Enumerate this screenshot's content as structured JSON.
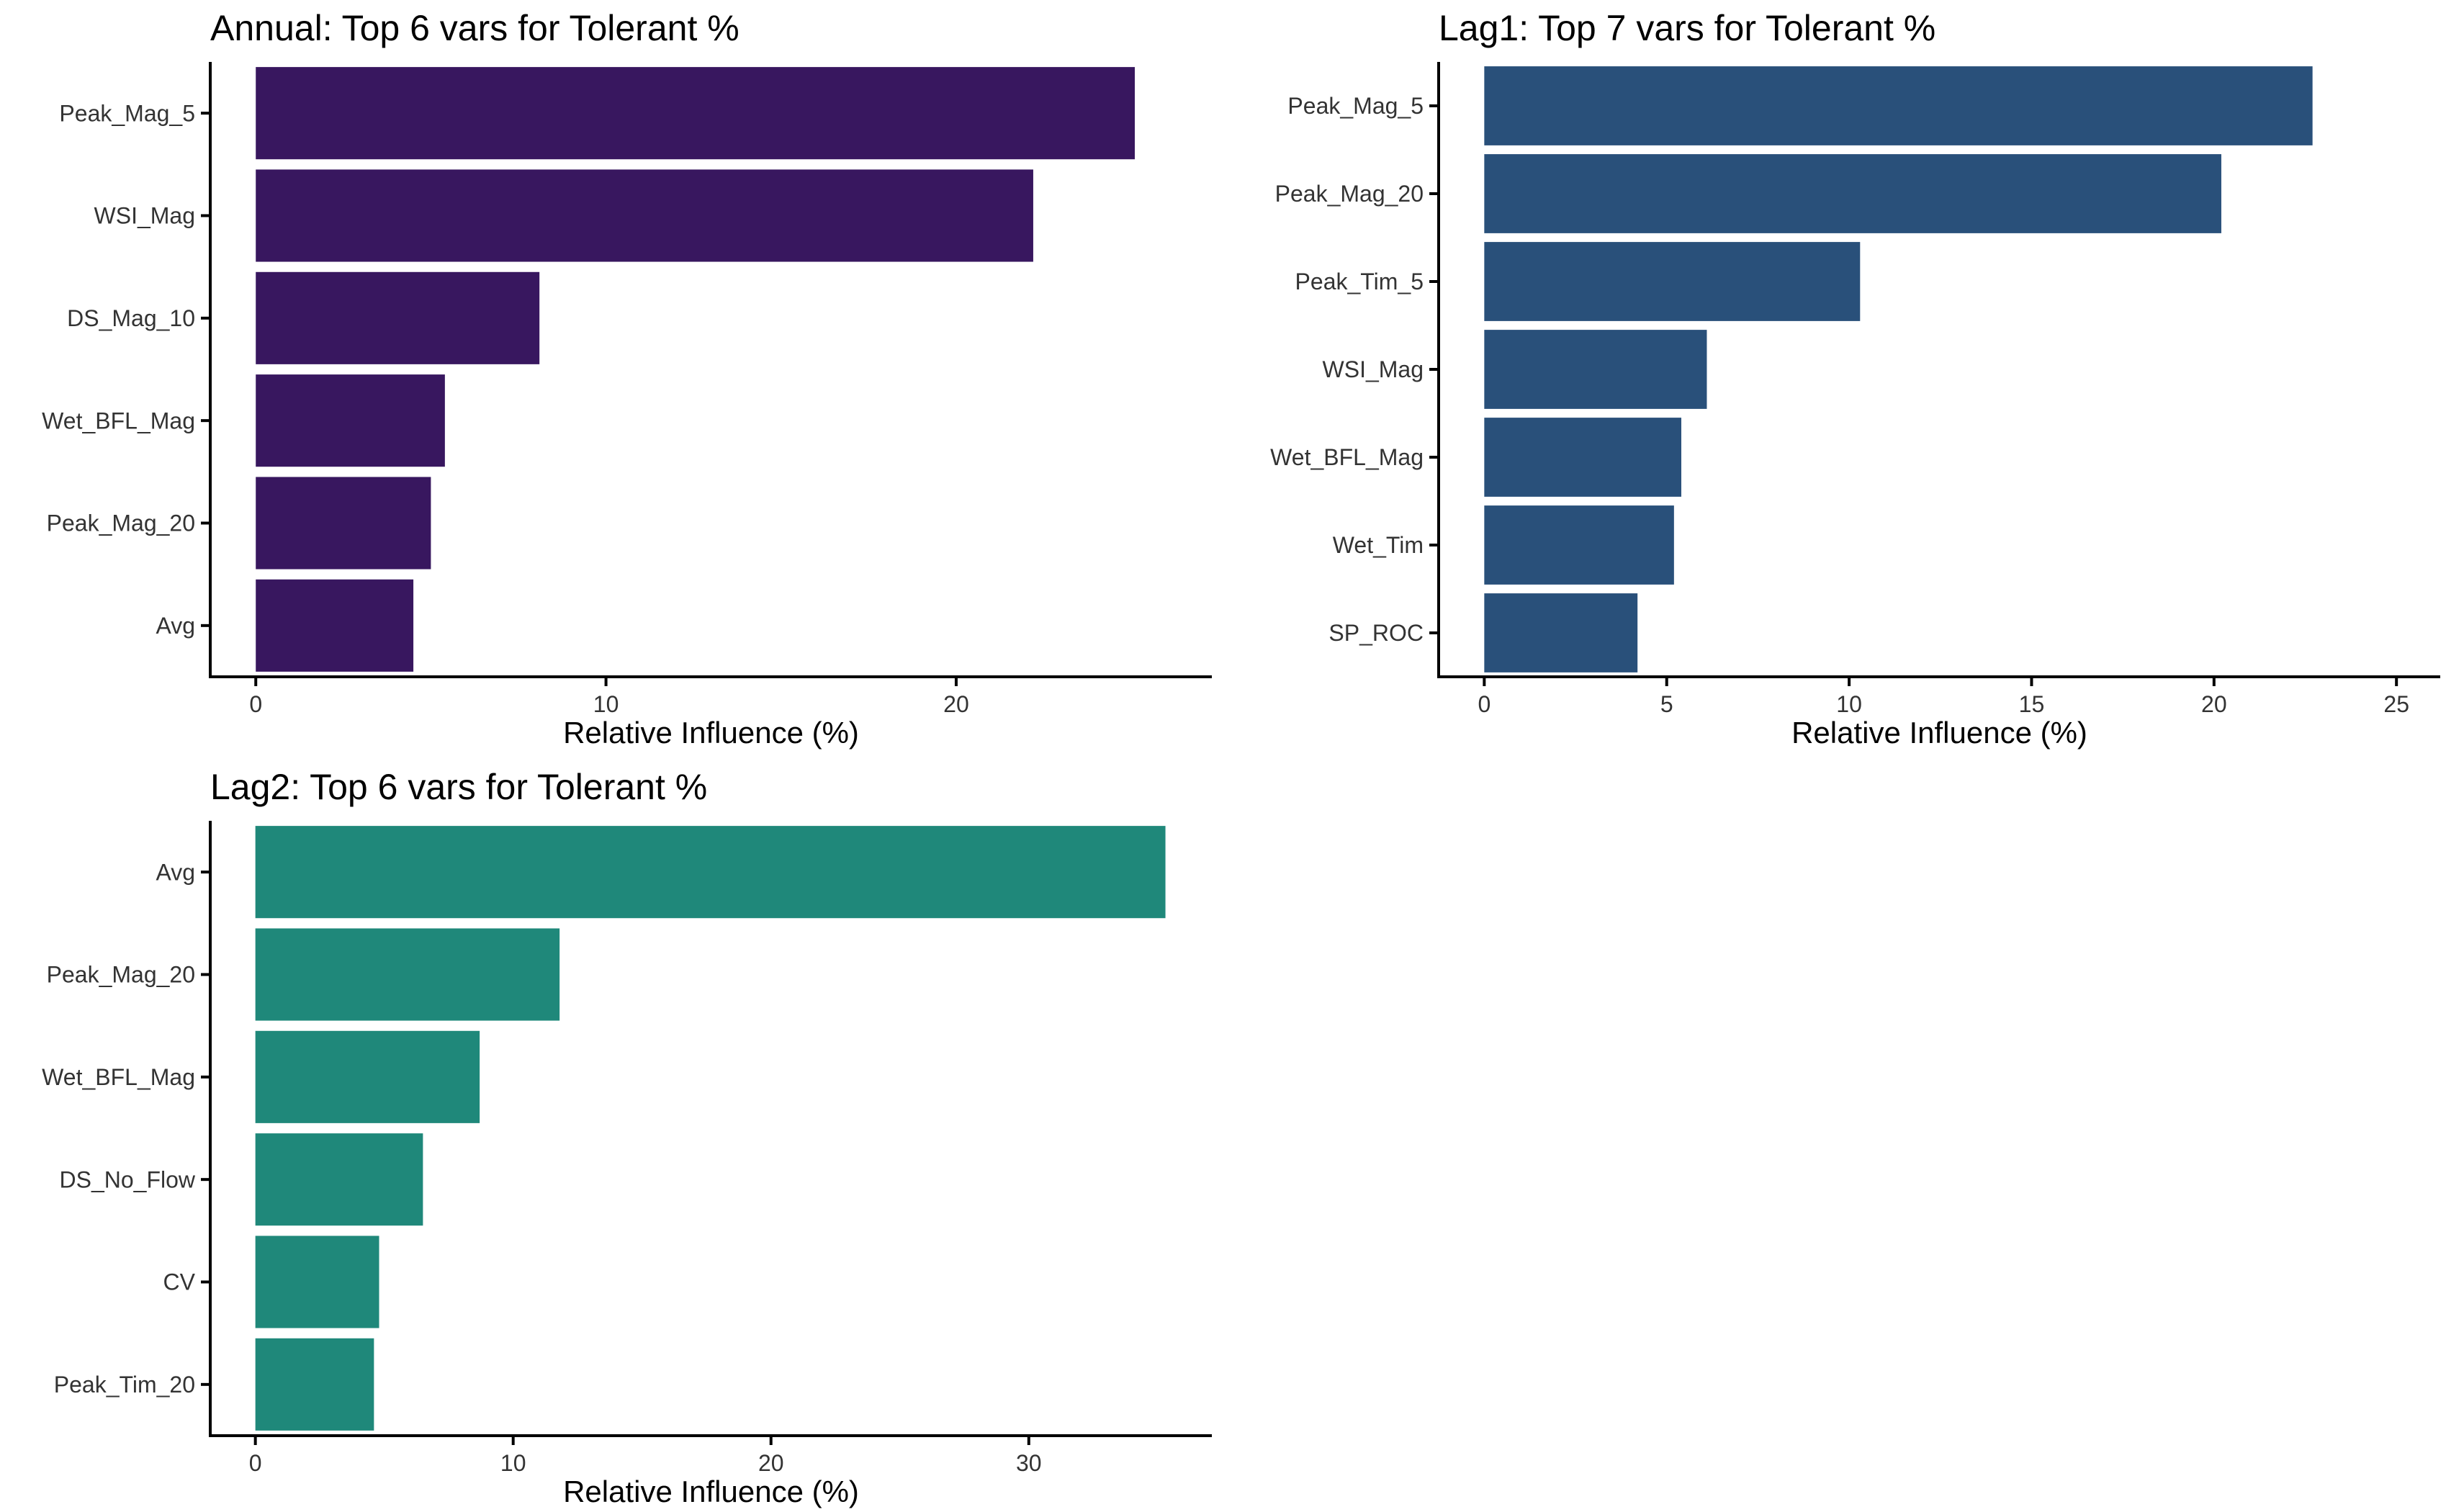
{
  "figure": {
    "panel_count": 3
  },
  "chart_data": [
    {
      "type": "bar",
      "orientation": "horizontal",
      "title": "Annual: Top 6 vars for Tolerant %",
      "xlabel": "Relative Influence (%)",
      "ylabel": "",
      "categories": [
        "Peak_Mag_5",
        "WSI_Mag",
        "DS_Mag_10",
        "Wet_BFL_Mag",
        "Peak_Mag_20",
        "Avg"
      ],
      "values": [
        25.1,
        22.2,
        8.1,
        5.4,
        5.0,
        4.5
      ],
      "xlim": [
        -1.3,
        27.3
      ],
      "xticks": [
        0,
        10,
        20
      ],
      "color": "#38175F",
      "grid": false,
      "legend": "none"
    },
    {
      "type": "bar",
      "orientation": "horizontal",
      "title": "Lag1: Top 7 vars for Tolerant %",
      "xlabel": "Relative Influence (%)",
      "ylabel": "",
      "categories": [
        "Peak_Mag_5",
        "Peak_Mag_20",
        "Peak_Tim_5",
        "WSI_Mag",
        "Wet_BFL_Mag",
        "Wet_Tim",
        "SP_ROC"
      ],
      "values": [
        22.7,
        20.2,
        10.3,
        6.1,
        5.4,
        5.2,
        4.2
      ],
      "xlim": [
        -1.25,
        26.2
      ],
      "xticks": [
        0,
        5,
        10,
        15,
        20,
        25
      ],
      "color": "#29507A",
      "grid": false,
      "legend": "none"
    },
    {
      "type": "bar",
      "orientation": "horizontal",
      "title": "Lag2: Top 6 vars for Tolerant %",
      "xlabel": "Relative Influence (%)",
      "ylabel": "",
      "categories": [
        "Avg",
        "Peak_Mag_20",
        "Wet_BFL_Mag",
        "DS_No_Flow",
        "CV",
        "Peak_Tim_20"
      ],
      "values": [
        35.3,
        11.8,
        8.7,
        6.5,
        4.8,
        4.6
      ],
      "xlim": [
        -1.75,
        37.1
      ],
      "xticks": [
        0,
        10,
        20,
        30
      ],
      "color": "#1F887A",
      "grid": false,
      "legend": "none"
    }
  ]
}
